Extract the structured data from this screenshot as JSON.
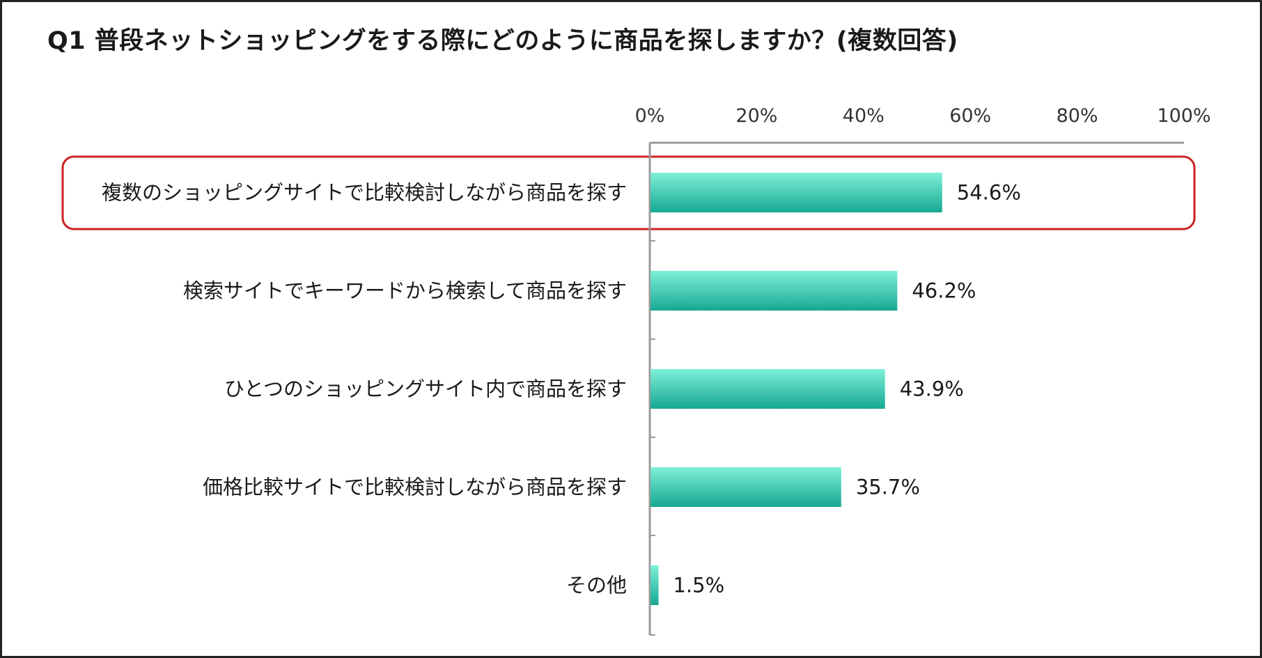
{
  "chart_data": {
    "type": "bar",
    "orientation": "horizontal",
    "title": "Q1 普段ネットショッピングをする際にどのように商品を探しますか？(複数回答)",
    "categories": [
      "複数のショッピングサイトで比較検討しながら商品を探す",
      "検索サイトでキーワードから検索して商品を探す",
      "ひとつのショッピングサイト内で商品を探す",
      "価格比較サイトで比較検討しながら商品を探す",
      "その他"
    ],
    "values": [
      54.6,
      46.2,
      43.9,
      35.7,
      1.5
    ],
    "value_labels": [
      "54.6%",
      "46.2%",
      "43.9%",
      "35.7%",
      "1.5%"
    ],
    "xlim": [
      0,
      100
    ],
    "xticks": [
      "0%",
      "20%",
      "40%",
      "60%",
      "80%",
      "100%"
    ],
    "tick_values": [
      0,
      20,
      40,
      60,
      80,
      100
    ],
    "grid": false,
    "highlighted_category_index": 0,
    "colors": {
      "bar_top": "#7ff0d8",
      "bar_bottom": "#16a892",
      "highlight_border": "#cc2222",
      "axis": "#9a9a9a"
    }
  }
}
